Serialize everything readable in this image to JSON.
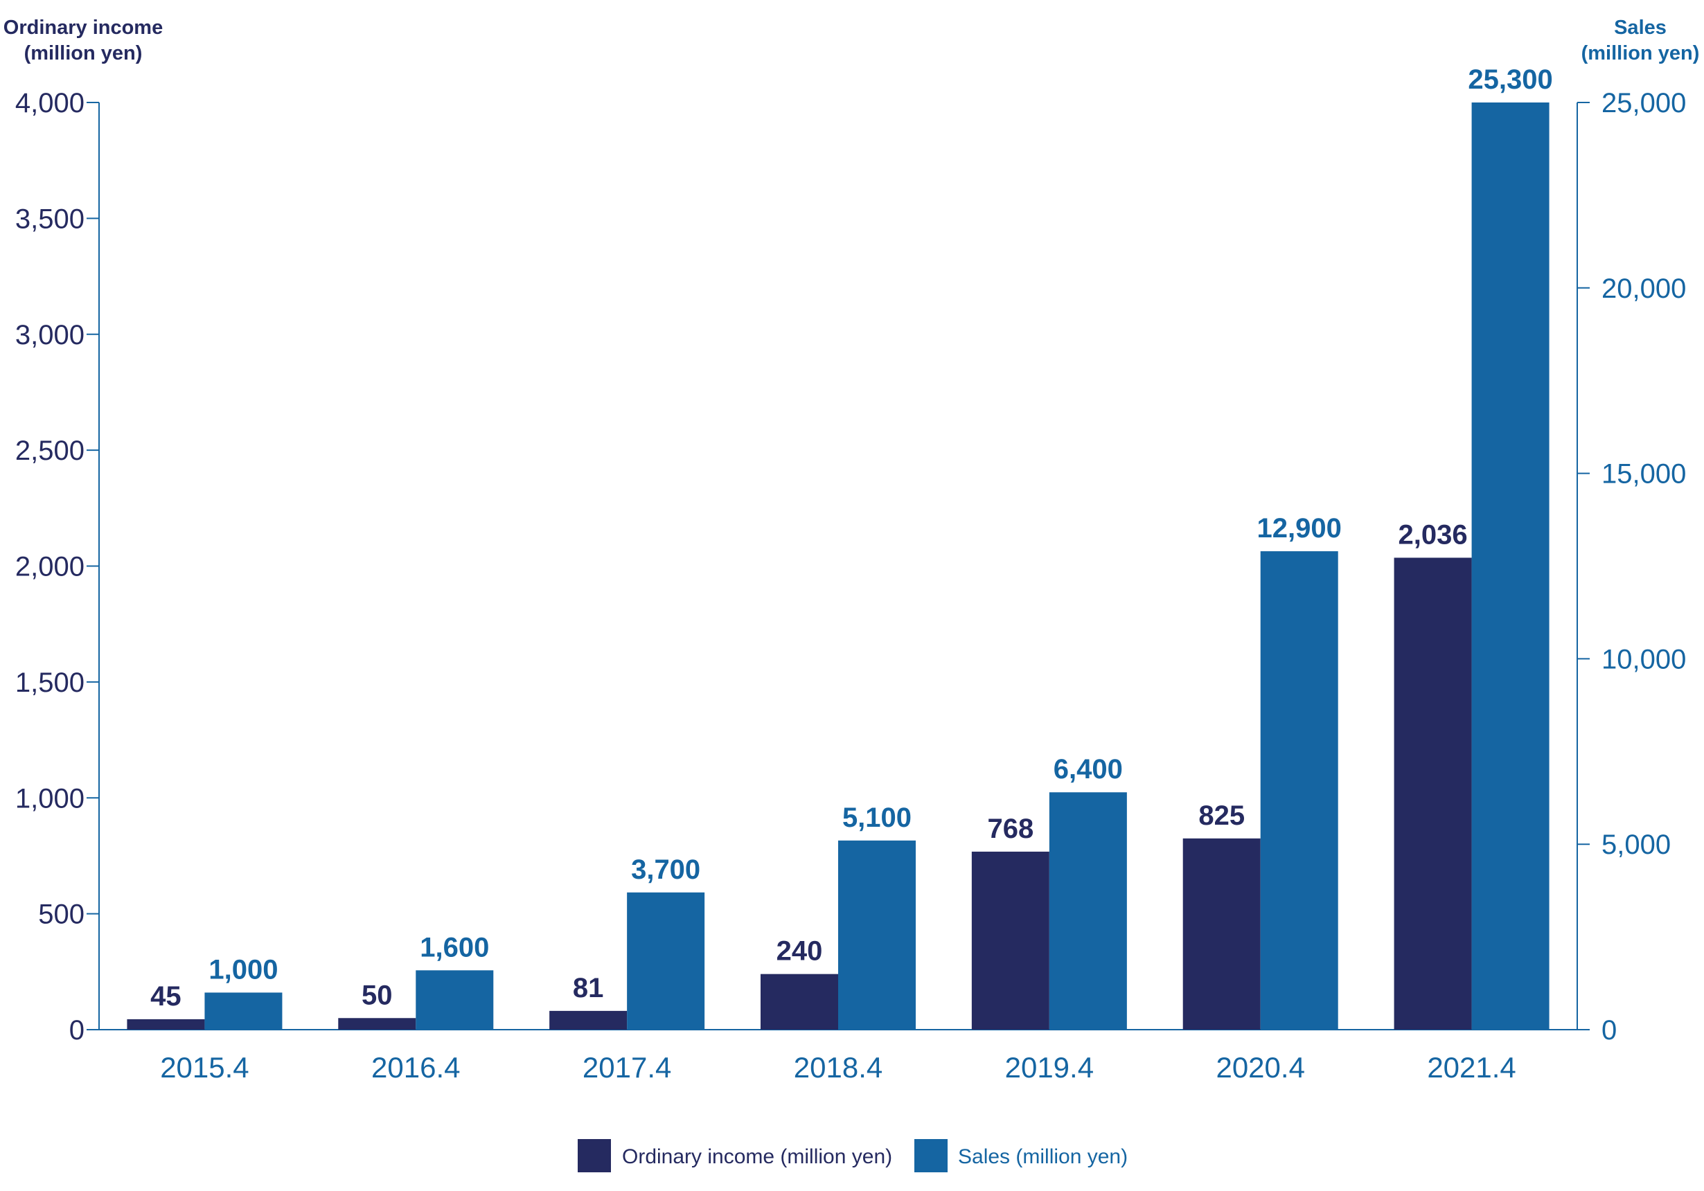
{
  "chart_data": {
    "type": "bar",
    "categories": [
      "2015.4",
      "2016.4",
      "2017.4",
      "2018.4",
      "2019.4",
      "2020.4",
      "2021.4"
    ],
    "series": [
      {
        "name": "Ordinary income (million yen)",
        "axis": "left",
        "color": "#252a60",
        "values": [
          45,
          50,
          81,
          240,
          768,
          825,
          2036
        ],
        "labels": [
          "45",
          "50",
          "81",
          "240",
          "768",
          "825",
          "2,036"
        ]
      },
      {
        "name": "Sales (million yen)",
        "axis": "right",
        "color": "#1565a2",
        "values": [
          1000,
          1600,
          3700,
          5100,
          6400,
          12900,
          25300
        ],
        "labels": [
          "1,000",
          "1,600",
          "3,700",
          "5,100",
          "6,400",
          "12,900",
          "25,300"
        ]
      }
    ],
    "left_axis": {
      "title_line1": "Ordinary income",
      "title_line2": "(million yen)",
      "ylim": [
        0,
        4000
      ],
      "ticks": [
        0,
        500,
        1000,
        1500,
        2000,
        2500,
        3000,
        3500,
        4000
      ],
      "tick_labels": [
        "0",
        "500",
        "1,000",
        "1,500",
        "2,000",
        "2,500",
        "3,000",
        "3,500",
        "4,000"
      ],
      "color": "#252a60"
    },
    "right_axis": {
      "title_line1": "Sales",
      "title_line2": "(million yen)",
      "ylim": [
        0,
        25000
      ],
      "ticks": [
        0,
        5000,
        10000,
        15000,
        20000,
        25000
      ],
      "tick_labels": [
        "0",
        "5,000",
        "10,000",
        "15,000",
        "20,000",
        "25,000"
      ],
      "color": "#1565a2"
    },
    "grid": false,
    "legend": "bottom-center",
    "axis_line_color": "#1565a2",
    "note": ""
  }
}
